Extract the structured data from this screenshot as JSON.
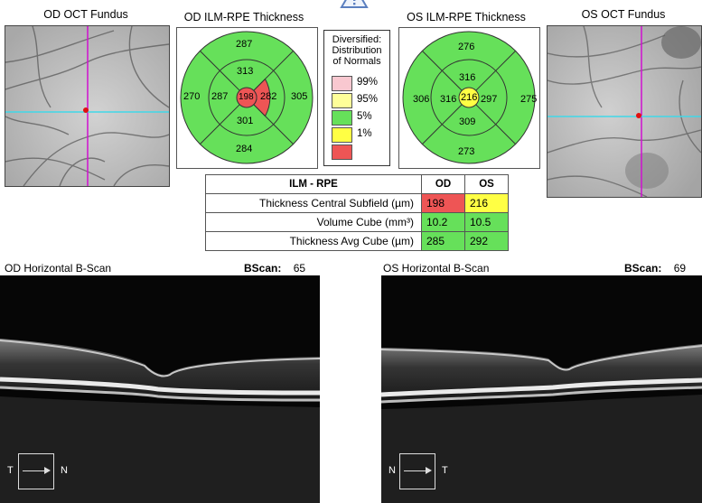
{
  "titles": {
    "od_fundus": "OD OCT Fundus",
    "od_thickness": "OD ILM-RPE Thickness",
    "os_thickness": "OS ILM-RPE Thickness",
    "os_fundus": "OS OCT Fundus"
  },
  "od_map": {
    "outer_top": "287",
    "outer_left": "270",
    "outer_right": "305",
    "outer_bottom": "284",
    "inner_top": "313",
    "inner_left": "287",
    "inner_right": "282",
    "inner_bottom": "301",
    "center": "198"
  },
  "os_map": {
    "outer_top": "276",
    "outer_left": "306",
    "outer_right": "275",
    "outer_bottom": "273",
    "inner_top": "316",
    "inner_left": "316",
    "inner_right": "297",
    "inner_bottom": "309",
    "center": "216"
  },
  "legend": {
    "title_line1": "Diversified:",
    "title_line2": "Distribution",
    "title_line3": "of Normals",
    "items": [
      {
        "label": "99%",
        "color": "#f9c8d0"
      },
      {
        "label": "95%",
        "color": "#ffff99"
      },
      {
        "label": "5%",
        "color": "#66e05a"
      },
      {
        "label": "1%",
        "color": "#ffff44"
      },
      {
        "label": "",
        "color": "#ee5555"
      }
    ]
  },
  "table": {
    "header": {
      "metric": "ILM - RPE",
      "od": "OD",
      "os": "OS"
    },
    "rows": [
      {
        "label": "Thickness Central Subfield (µm)",
        "od": "198",
        "os": "216"
      },
      {
        "label": "Volume Cube (mm³)",
        "od": "10.2",
        "os": "10.5"
      },
      {
        "label": "Thickness Avg Cube (µm)",
        "od": "285",
        "os": "292"
      }
    ]
  },
  "bscans": {
    "od_label": "OD Horizontal B-Scan",
    "od_bscan_key": "BScan:",
    "od_bscan_num": "65",
    "od_left": "T",
    "od_right": "N",
    "os_label": "OS Horizontal B-Scan",
    "os_bscan_key": "BScan:",
    "os_bscan_num": "69",
    "os_left": "N",
    "os_right": "T"
  },
  "colors": {
    "green": "#66e05a",
    "red": "#ee5555",
    "yellow": "#ffff44",
    "magenta": "#d010d0",
    "cyan": "#40d8e8"
  }
}
